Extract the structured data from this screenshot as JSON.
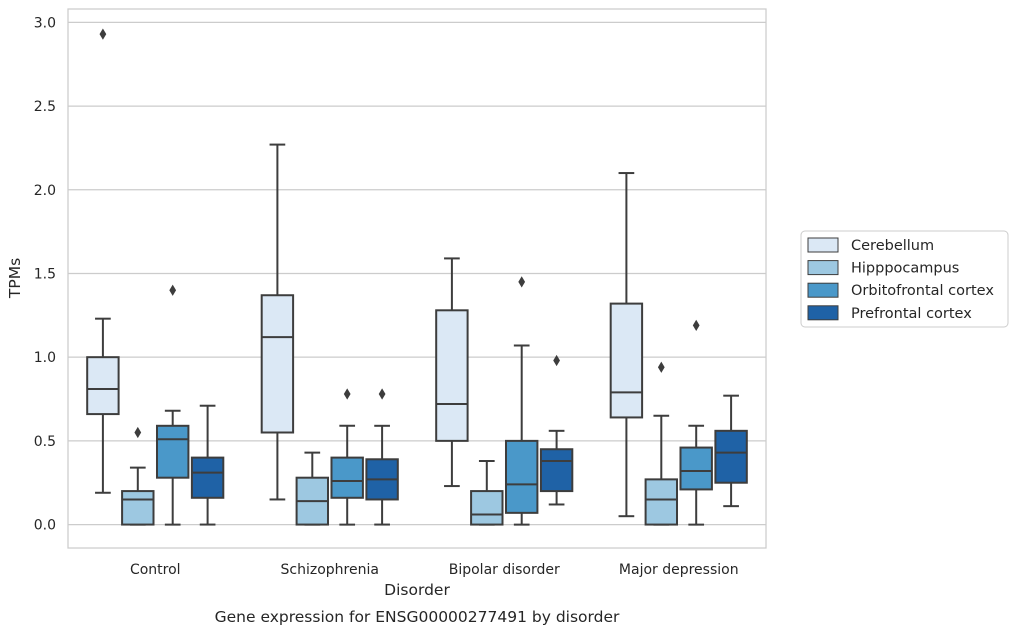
{
  "chart_data": {
    "type": "box",
    "title": "",
    "caption": "Gene expression for ENSG00000277491 by disorder",
    "xlabel": "Disorder",
    "ylabel": "TPMs",
    "ylim": [
      -0.14,
      3.08
    ],
    "yticks": [
      0.0,
      0.5,
      1.0,
      1.5,
      2.0,
      2.5,
      3.0
    ],
    "ytick_labels": [
      "0.0",
      "0.5",
      "1.0",
      "1.5",
      "2.0",
      "2.5",
      "3.0"
    ],
    "grid": "horizontal",
    "legend_position": "right",
    "categories": [
      "Control",
      "Schizophrenia",
      "Bipolar disorder",
      "Major depression"
    ],
    "series": [
      {
        "name": "Cerebellum",
        "color": "#dbe8f5",
        "boxes": [
          {
            "whislo": 0.19,
            "q1": 0.66,
            "med": 0.81,
            "q3": 1.0,
            "whishi": 1.23,
            "fliers": [
              2.93
            ]
          },
          {
            "whislo": 0.15,
            "q1": 0.55,
            "med": 1.12,
            "q3": 1.37,
            "whishi": 2.27,
            "fliers": []
          },
          {
            "whislo": 0.23,
            "q1": 0.5,
            "med": 0.72,
            "q3": 1.28,
            "whishi": 1.59,
            "fliers": []
          },
          {
            "whislo": 0.05,
            "q1": 0.64,
            "med": 0.79,
            "q3": 1.32,
            "whishi": 2.1,
            "fliers": []
          }
        ]
      },
      {
        "name": "Hipppocampus",
        "color": "#9dc8e1",
        "boxes": [
          {
            "whislo": 0.0,
            "q1": 0.0,
            "med": 0.15,
            "q3": 0.2,
            "whishi": 0.34,
            "fliers": [
              0.55
            ]
          },
          {
            "whislo": 0.0,
            "q1": 0.0,
            "med": 0.14,
            "q3": 0.28,
            "whishi": 0.43,
            "fliers": []
          },
          {
            "whislo": 0.0,
            "q1": 0.0,
            "med": 0.06,
            "q3": 0.2,
            "whishi": 0.38,
            "fliers": []
          },
          {
            "whislo": 0.0,
            "q1": 0.0,
            "med": 0.15,
            "q3": 0.27,
            "whishi": 0.65,
            "fliers": [
              0.94
            ]
          }
        ]
      },
      {
        "name": "Orbitofrontal cortex",
        "color": "#4a98c9",
        "boxes": [
          {
            "whislo": 0.0,
            "q1": 0.28,
            "med": 0.51,
            "q3": 0.59,
            "whishi": 0.68,
            "fliers": [
              1.4
            ]
          },
          {
            "whislo": 0.0,
            "q1": 0.16,
            "med": 0.26,
            "q3": 0.4,
            "whishi": 0.59,
            "fliers": [
              0.78
            ]
          },
          {
            "whislo": 0.0,
            "q1": 0.07,
            "med": 0.24,
            "q3": 0.5,
            "whishi": 1.07,
            "fliers": [
              1.45
            ]
          },
          {
            "whislo": 0.0,
            "q1": 0.21,
            "med": 0.32,
            "q3": 0.46,
            "whishi": 0.59,
            "fliers": [
              1.19
            ]
          }
        ]
      },
      {
        "name": "Prefrontal cortex",
        "color": "#1f62a6",
        "boxes": [
          {
            "whislo": 0.0,
            "q1": 0.16,
            "med": 0.31,
            "q3": 0.4,
            "whishi": 0.71,
            "fliers": []
          },
          {
            "whislo": 0.0,
            "q1": 0.15,
            "med": 0.27,
            "q3": 0.39,
            "whishi": 0.59,
            "fliers": [
              0.78
            ]
          },
          {
            "whislo": 0.12,
            "q1": 0.2,
            "med": 0.38,
            "q3": 0.45,
            "whishi": 0.56,
            "fliers": [
              0.98
            ]
          },
          {
            "whislo": 0.11,
            "q1": 0.25,
            "med": 0.43,
            "q3": 0.56,
            "whishi": 0.77,
            "fliers": []
          }
        ]
      }
    ]
  }
}
